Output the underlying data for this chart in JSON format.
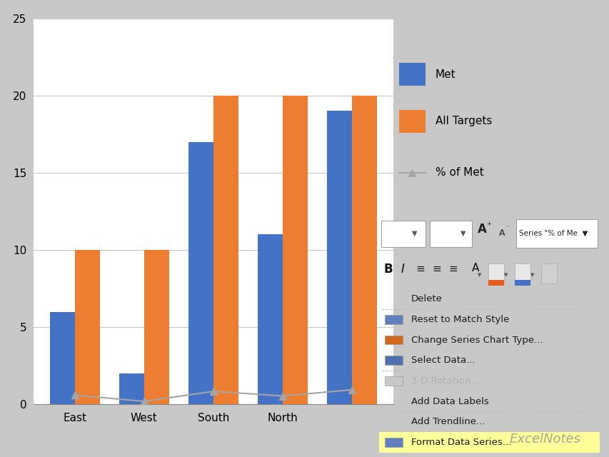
{
  "categories": [
    "East",
    "West",
    "South",
    "North",
    ""
  ],
  "met_values": [
    6,
    2,
    17,
    11,
    19
  ],
  "targets_values": [
    10,
    10,
    20,
    20,
    20
  ],
  "pct_met_line": [
    0.6,
    0.2,
    0.85,
    0.55,
    0.95
  ],
  "bar_color_met": "#4472C4",
  "bar_color_targets": "#ED7D31",
  "line_color": "#A5A5A5",
  "ylim": [
    0,
    25
  ],
  "yticks": [
    0,
    5,
    10,
    15,
    20,
    25
  ],
  "legend_labels": [
    "Met",
    "All Targets",
    "% of Met"
  ],
  "outer_bg": "#C8C8C8",
  "chart_bg": "#FFFFFF",
  "grid_color": "#C8C8C8",
  "toolbar_bg": "#F0EFE3",
  "menu_bg": "#FAFAFA",
  "menu_highlight_color": "#FFFF99",
  "menu_items": [
    "Delete",
    "Reset to Match Style",
    "Change Series Chart Type...",
    "Select Data...",
    "3-D Rotation...",
    "Add Data Labels",
    "Add Trendline...",
    "Format Data Series..."
  ],
  "menu_highlight_idx": 7,
  "menu_greyed_idx": 4,
  "menu_dividers_after": [
    0,
    3,
    5
  ],
  "icon_colors": [
    "none",
    "#6080C0",
    "#D06820",
    "#5070B0",
    "#C0C0C0",
    "none",
    "none",
    "#6080C0"
  ],
  "watermark_text": "ExcelNotes",
  "watermark_color": "#909090",
  "chart_frame_color": "#A0A0B0"
}
